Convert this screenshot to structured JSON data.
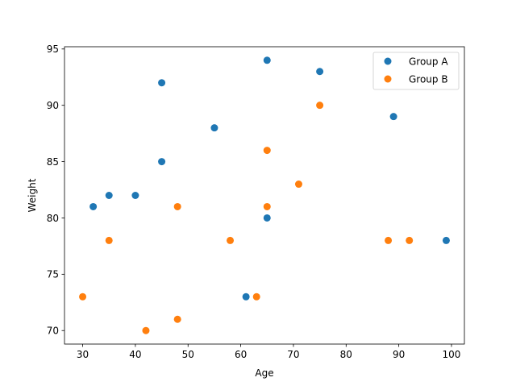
{
  "chart_data": {
    "type": "scatter",
    "title": "",
    "xlabel": "Age",
    "ylabel": "Weight",
    "xlim": [
      26.55,
      102.45
    ],
    "ylim": [
      68.8,
      95.2
    ],
    "x_ticks": [
      30,
      40,
      50,
      60,
      70,
      80,
      90,
      100
    ],
    "y_ticks": [
      70,
      75,
      80,
      85,
      90,
      95
    ],
    "grid": false,
    "legend_position": "top-right",
    "series": [
      {
        "name": "Group A",
        "color": "#1f77b4",
        "points": [
          {
            "x": 32,
            "y": 81
          },
          {
            "x": 35,
            "y": 82
          },
          {
            "x": 40,
            "y": 82
          },
          {
            "x": 45,
            "y": 85
          },
          {
            "x": 45,
            "y": 92
          },
          {
            "x": 55,
            "y": 88
          },
          {
            "x": 61,
            "y": 73
          },
          {
            "x": 65,
            "y": 80
          },
          {
            "x": 65,
            "y": 94
          },
          {
            "x": 75,
            "y": 93
          },
          {
            "x": 89,
            "y": 89
          },
          {
            "x": 99,
            "y": 78
          }
        ]
      },
      {
        "name": "Group B",
        "color": "#ff7f0e",
        "points": [
          {
            "x": 30,
            "y": 73
          },
          {
            "x": 35,
            "y": 78
          },
          {
            "x": 42,
            "y": 70
          },
          {
            "x": 48,
            "y": 71
          },
          {
            "x": 48,
            "y": 81
          },
          {
            "x": 58,
            "y": 78
          },
          {
            "x": 63,
            "y": 73
          },
          {
            "x": 65,
            "y": 81
          },
          {
            "x": 65,
            "y": 86
          },
          {
            "x": 71,
            "y": 83
          },
          {
            "x": 75,
            "y": 90
          },
          {
            "x": 88,
            "y": 78
          },
          {
            "x": 92,
            "y": 78
          }
        ]
      }
    ]
  }
}
